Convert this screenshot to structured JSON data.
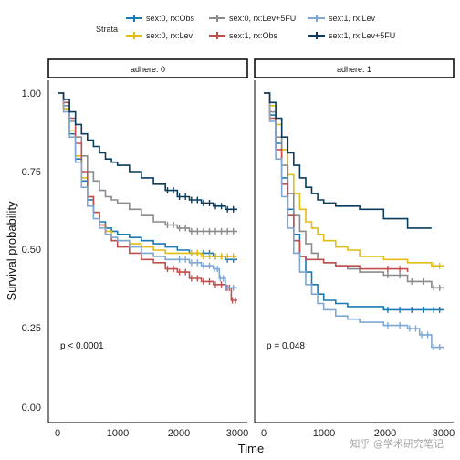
{
  "chart_data": {
    "type": "line",
    "step": true,
    "xlabel": "Time",
    "ylabel": "Survival probability",
    "xlim": [
      -150,
      3100
    ],
    "ylim": [
      -0.05,
      1.05
    ],
    "x_ticks": [
      0,
      1000,
      2000,
      3000
    ],
    "x_tick_labels": [
      "0",
      "1000",
      "2000",
      "3000"
    ],
    "y_ticks": [
      0,
      0.25,
      0.5,
      0.75,
      1.0
    ],
    "y_tick_labels": [
      "0.00",
      "0.25",
      "0.50",
      "0.75",
      "1.00"
    ],
    "grid": false,
    "legend": {
      "title": "Strata",
      "placement": "top",
      "entries": [
        {
          "label": "sex:0, rx:Obs",
          "color": "#1a7ab4"
        },
        {
          "label": "sex:0, rx:Lev",
          "color": "#e4bc16"
        },
        {
          "label": "sex:0, rx:Lev+5FU",
          "color": "#8b8b8b"
        },
        {
          "label": "sex:1, rx:Obs",
          "color": "#c0504d"
        },
        {
          "label": "sex:1, rx:Lev",
          "color": "#7fa7d4"
        },
        {
          "label": "sex:1, rx:Lev+5FU",
          "color": "#0b3c5d"
        }
      ]
    },
    "facets": [
      {
        "label": "adhere: 0",
        "annotation": "p < 0.0001",
        "series": [
          {
            "name": "sex:0, rx:Obs",
            "color": "#1a7ab4",
            "censor_from": 2200,
            "x": [
              0,
              100,
              200,
              300,
              400,
              500,
              600,
              700,
              800,
              900,
              1000,
              1200,
              1400,
              1600,
              1800,
              2000,
              2200,
              2400,
              2600,
              2800,
              3000
            ],
            "y": [
              1.0,
              0.95,
              0.87,
              0.79,
              0.72,
              0.66,
              0.62,
              0.59,
              0.57,
              0.56,
              0.55,
              0.54,
              0.53,
              0.52,
              0.51,
              0.5,
              0.49,
              0.49,
              0.48,
              0.47,
              0.47
            ]
          },
          {
            "name": "sex:0, rx:Lev",
            "color": "#e4bc16",
            "censor_from": 2200,
            "x": [
              0,
              100,
              200,
              300,
              400,
              500,
              600,
              700,
              800,
              900,
              1000,
              1200,
              1400,
              1600,
              1800,
              2000,
              2200,
              2400,
              2600,
              2800,
              3000
            ],
            "y": [
              1.0,
              0.95,
              0.88,
              0.8,
              0.73,
              0.67,
              0.62,
              0.58,
              0.56,
              0.54,
              0.53,
              0.52,
              0.51,
              0.5,
              0.49,
              0.49,
              0.49,
              0.48,
              0.48,
              0.48,
              0.48
            ]
          },
          {
            "name": "sex:0, rx:Lev+5FU",
            "color": "#8b8b8b",
            "censor_from": 1700,
            "x": [
              0,
              100,
              200,
              300,
              400,
              500,
              600,
              700,
              800,
              900,
              1000,
              1200,
              1400,
              1600,
              1800,
              2000,
              2200,
              2400,
              2600,
              2800,
              3000
            ],
            "y": [
              1.0,
              0.96,
              0.91,
              0.86,
              0.8,
              0.75,
              0.72,
              0.69,
              0.67,
              0.66,
              0.65,
              0.63,
              0.61,
              0.59,
              0.58,
              0.57,
              0.56,
              0.56,
              0.56,
              0.56,
              0.56
            ]
          },
          {
            "name": "sex:1, rx:Obs",
            "color": "#c0504d",
            "censor_from": 1700,
            "x": [
              0,
              100,
              200,
              300,
              400,
              500,
              600,
              700,
              800,
              900,
              1000,
              1200,
              1400,
              1600,
              1800,
              2000,
              2200,
              2400,
              2600,
              2800,
              2900,
              3000
            ],
            "y": [
              1.0,
              0.97,
              0.92,
              0.84,
              0.75,
              0.67,
              0.62,
              0.58,
              0.55,
              0.53,
              0.51,
              0.49,
              0.47,
              0.46,
              0.44,
              0.43,
              0.41,
              0.4,
              0.39,
              0.38,
              0.34,
              0.34
            ]
          },
          {
            "name": "sex:1, rx:Lev",
            "color": "#7fa7d4",
            "censor_from": 1900,
            "x": [
              0,
              100,
              200,
              300,
              400,
              500,
              600,
              700,
              800,
              900,
              1000,
              1200,
              1400,
              1600,
              1800,
              2000,
              2200,
              2400,
              2600,
              2700,
              2800,
              3000
            ],
            "y": [
              1.0,
              0.94,
              0.86,
              0.78,
              0.7,
              0.64,
              0.6,
              0.57,
              0.55,
              0.54,
              0.53,
              0.51,
              0.49,
              0.48,
              0.47,
              0.47,
              0.46,
              0.45,
              0.44,
              0.41,
              0.38,
              0.38
            ]
          },
          {
            "name": "sex:1, rx:Lev+5FU",
            "color": "#0b3c5d",
            "censor_from": 1700,
            "x": [
              0,
              100,
              200,
              300,
              400,
              500,
              600,
              700,
              800,
              900,
              1000,
              1200,
              1400,
              1600,
              1800,
              2000,
              2200,
              2400,
              2600,
              2800,
              3000
            ],
            "y": [
              1.0,
              0.98,
              0.94,
              0.9,
              0.87,
              0.85,
              0.83,
              0.81,
              0.79,
              0.78,
              0.77,
              0.75,
              0.73,
              0.71,
              0.69,
              0.67,
              0.66,
              0.65,
              0.64,
              0.63,
              0.63
            ]
          }
        ]
      },
      {
        "label": "adhere: 1",
        "annotation": "p = 0.048",
        "series": [
          {
            "name": "sex:0, rx:Obs",
            "color": "#1a7ab4",
            "censor_from": 1800,
            "x": [
              0,
              100,
              200,
              300,
              400,
              500,
              600,
              700,
              800,
              900,
              1000,
              1200,
              1400,
              1600,
              2000,
              2400,
              2800,
              3000
            ],
            "y": [
              1.0,
              0.93,
              0.84,
              0.73,
              0.63,
              0.55,
              0.48,
              0.43,
              0.39,
              0.36,
              0.34,
              0.33,
              0.32,
              0.32,
              0.31,
              0.31,
              0.31,
              0.31
            ]
          },
          {
            "name": "sex:0, rx:Lev",
            "color": "#e4bc16",
            "censor_from": 2500,
            "x": [
              0,
              100,
              200,
              300,
              400,
              500,
              600,
              700,
              800,
              900,
              1000,
              1200,
              1400,
              1600,
              2000,
              2400,
              2800,
              3000
            ],
            "y": [
              1.0,
              0.96,
              0.9,
              0.82,
              0.74,
              0.68,
              0.63,
              0.59,
              0.57,
              0.55,
              0.53,
              0.51,
              0.5,
              0.48,
              0.47,
              0.46,
              0.45,
              0.45
            ]
          },
          {
            "name": "sex:0, rx:Lev+5FU",
            "color": "#8b8b8b",
            "censor_from": 1800,
            "x": [
              0,
              100,
              200,
              300,
              400,
              500,
              600,
              700,
              800,
              900,
              1000,
              1200,
              1400,
              1600,
              2000,
              2400,
              2800,
              3000
            ],
            "y": [
              1.0,
              0.94,
              0.86,
              0.77,
              0.68,
              0.61,
              0.56,
              0.52,
              0.49,
              0.47,
              0.46,
              0.45,
              0.44,
              0.43,
              0.42,
              0.4,
              0.38,
              0.38
            ]
          },
          {
            "name": "sex:1, rx:Obs",
            "color": "#c0504d",
            "censor_from": 1800,
            "x": [
              0,
              100,
              200,
              300,
              400,
              500,
              600,
              700,
              800,
              900,
              1000,
              1200,
              1400,
              1600,
              2000,
              2400
            ],
            "y": [
              1.0,
              0.92,
              0.82,
              0.71,
              0.61,
              0.53,
              0.48,
              0.47,
              0.47,
              0.47,
              0.46,
              0.45,
              0.45,
              0.44,
              0.44,
              0.43
            ]
          },
          {
            "name": "sex:1, rx:Lev",
            "color": "#7fa7d4",
            "censor_from": 2000,
            "x": [
              0,
              100,
              200,
              300,
              400,
              500,
              600,
              700,
              800,
              900,
              1000,
              1200,
              1400,
              1600,
              2000,
              2400,
              2600,
              2800,
              3000
            ],
            "y": [
              1.0,
              0.91,
              0.79,
              0.67,
              0.57,
              0.49,
              0.43,
              0.39,
              0.36,
              0.33,
              0.31,
              0.29,
              0.28,
              0.27,
              0.26,
              0.25,
              0.23,
              0.19,
              0.19
            ]
          },
          {
            "name": "sex:1, rx:Lev+5FU",
            "color": "#0b3c5d",
            "censor_from": 2500,
            "x": [
              0,
              100,
              200,
              300,
              400,
              500,
              600,
              700,
              800,
              900,
              1000,
              1200,
              1400,
              1600,
              2000,
              2400,
              2800
            ],
            "y": [
              1.0,
              0.97,
              0.92,
              0.86,
              0.81,
              0.77,
              0.73,
              0.7,
              0.68,
              0.66,
              0.65,
              0.64,
              0.64,
              0.63,
              0.6,
              0.57,
              0.57
            ]
          }
        ]
      }
    ]
  },
  "watermark": "知乎 @学术研究笔记"
}
